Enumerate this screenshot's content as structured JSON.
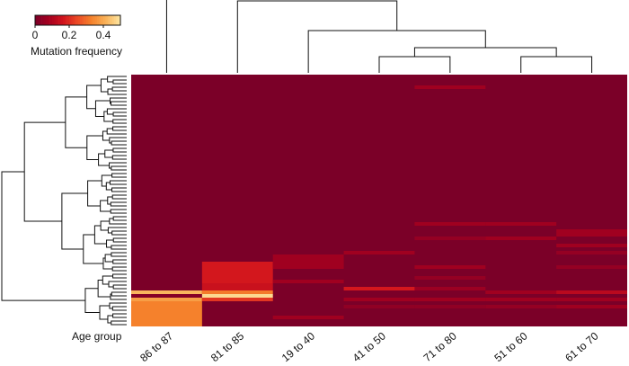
{
  "chart_data": {
    "type": "heatmap",
    "title": "",
    "xlabel": "Age group",
    "ylabel": "",
    "columns": [
      "86 to 87",
      "81 to 85",
      "19 to 40",
      "41 to 50",
      "71 to 80",
      "51 to 60",
      "61 to 70"
    ],
    "n_rows": 70,
    "background_value": 0.0,
    "value_range": [
      0,
      0.5
    ],
    "colorbar": {
      "label": "Mutation frequency",
      "ticks": [
        "0",
        "0.2",
        "0.4"
      ],
      "tick_values": [
        0,
        0.2,
        0.4
      ],
      "colors": [
        "#7b0028",
        "#a7001f",
        "#d2151d",
        "#ec4a25",
        "#f5832c",
        "#f9b35a",
        "#fde6a2"
      ]
    },
    "column_dendrogram_merges": [
      [
        "41 to 50",
        "71 to 80"
      ],
      [
        "51 to 60",
        "61 to 70"
      ],
      [
        "41 to 50 + 71 to 80",
        "51 to 60 + 61 to 70"
      ],
      [
        "19 to 40",
        "41 to 50 + 71 to 80 + 51 to 60 + 61 to 70"
      ],
      [
        "81 to 85",
        "19 to 40 + 41 to 50 + 71 to 80 + 51 to 60 + 61 to 70"
      ],
      [
        "86 to 87",
        "all others"
      ]
    ],
    "cells": [
      {
        "column": "86 to 87",
        "rows": [
          60,
          60
        ],
        "value": 0.42
      },
      {
        "column": "86 to 87",
        "rows": [
          61,
          61
        ],
        "value": 0.02
      },
      {
        "column": "86 to 87",
        "rows": [
          62,
          62
        ],
        "value": 0.38
      },
      {
        "column": "86 to 87",
        "rows": [
          63,
          69
        ],
        "value": 0.33
      },
      {
        "column": "81 to 85",
        "rows": [
          52,
          57
        ],
        "value": 0.17
      },
      {
        "column": "81 to 85",
        "rows": [
          58,
          59
        ],
        "value": 0.15
      },
      {
        "column": "81 to 85",
        "rows": [
          60,
          60
        ],
        "value": 0.32
      },
      {
        "column": "81 to 85",
        "rows": [
          61,
          61
        ],
        "value": 0.48
      },
      {
        "column": "81 to 85",
        "rows": [
          62,
          62
        ],
        "value": 0.22
      },
      {
        "column": "19 to 40",
        "rows": [
          50,
          53
        ],
        "value": 0.07
      },
      {
        "column": "19 to 40",
        "rows": [
          57,
          57
        ],
        "value": 0.07
      },
      {
        "column": "19 to 40",
        "rows": [
          67,
          67
        ],
        "value": 0.07
      },
      {
        "column": "41 to 50",
        "rows": [
          49,
          49
        ],
        "value": 0.07
      },
      {
        "column": "41 to 50",
        "rows": [
          59,
          59
        ],
        "value": 0.17
      },
      {
        "column": "41 to 50",
        "rows": [
          62,
          62
        ],
        "value": 0.07
      },
      {
        "column": "41 to 50",
        "rows": [
          64,
          64
        ],
        "value": 0.04
      },
      {
        "column": "71 to 80",
        "rows": [
          3,
          3
        ],
        "value": 0.07
      },
      {
        "column": "71 to 80",
        "rows": [
          41,
          41
        ],
        "value": 0.07
      },
      {
        "column": "71 to 80",
        "rows": [
          45,
          45
        ],
        "value": 0.05
      },
      {
        "column": "71 to 80",
        "rows": [
          53,
          53
        ],
        "value": 0.07
      },
      {
        "column": "71 to 80",
        "rows": [
          56,
          56
        ],
        "value": 0.05
      },
      {
        "column": "71 to 80",
        "rows": [
          59,
          59
        ],
        "value": 0.06
      },
      {
        "column": "71 to 80",
        "rows": [
          62,
          62
        ],
        "value": 0.07
      },
      {
        "column": "71 to 80",
        "rows": [
          64,
          64
        ],
        "value": 0.04
      },
      {
        "column": "51 to 60",
        "rows": [
          41,
          41
        ],
        "value": 0.07
      },
      {
        "column": "51 to 60",
        "rows": [
          45,
          45
        ],
        "value": 0.07
      },
      {
        "column": "51 to 60",
        "rows": [
          60,
          60
        ],
        "value": 0.07
      },
      {
        "column": "51 to 60",
        "rows": [
          62,
          62
        ],
        "value": 0.07
      },
      {
        "column": "51 to 60",
        "rows": [
          64,
          64
        ],
        "value": 0.05
      },
      {
        "column": "61 to 70",
        "rows": [
          43,
          44
        ],
        "value": 0.07
      },
      {
        "column": "61 to 70",
        "rows": [
          47,
          47
        ],
        "value": 0.07
      },
      {
        "column": "61 to 70",
        "rows": [
          49,
          49
        ],
        "value": 0.05
      },
      {
        "column": "61 to 70",
        "rows": [
          53,
          53
        ],
        "value": 0.05
      },
      {
        "column": "61 to 70",
        "rows": [
          60,
          60
        ],
        "value": 0.12
      },
      {
        "column": "61 to 70",
        "rows": [
          62,
          62
        ],
        "value": 0.07
      },
      {
        "column": "61 to 70",
        "rows": [
          64,
          64
        ],
        "value": 0.07
      }
    ]
  }
}
